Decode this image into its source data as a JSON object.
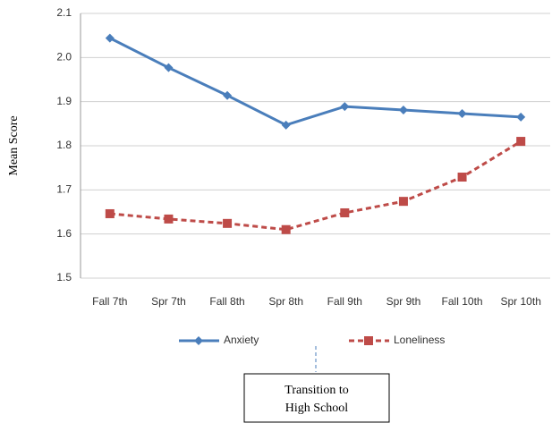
{
  "chart_data": {
    "type": "line",
    "y_label": "Mean Score",
    "categories": [
      "Fall 7th",
      "Spr 7th",
      "Fall 8th",
      "Spr 8th",
      "Fall 9th",
      "Spr 9th",
      "Fall 10th",
      "Spr 10th"
    ],
    "series": [
      {
        "name": "Anxiety",
        "color": "#4a7ebb",
        "values": [
          2.044,
          1.977,
          1.914,
          1.847,
          1.889,
          1.881,
          1.873,
          1.865
        ]
      },
      {
        "name": "Loneliness",
        "color": "#be4b48",
        "values": [
          1.646,
          1.634,
          1.624,
          1.61,
          1.648,
          1.674,
          1.729,
          1.81
        ]
      }
    ],
    "ylim": [
      1.5,
      2.1
    ],
    "yticks": [
      1.5,
      1.6,
      1.7,
      1.8,
      1.9,
      {
        "value": 2,
        "label": "2.0"
      },
      2.1
    ],
    "grid": true,
    "legend": "bottom",
    "annotation": [
      "Transition to",
      "High School"
    ]
  }
}
